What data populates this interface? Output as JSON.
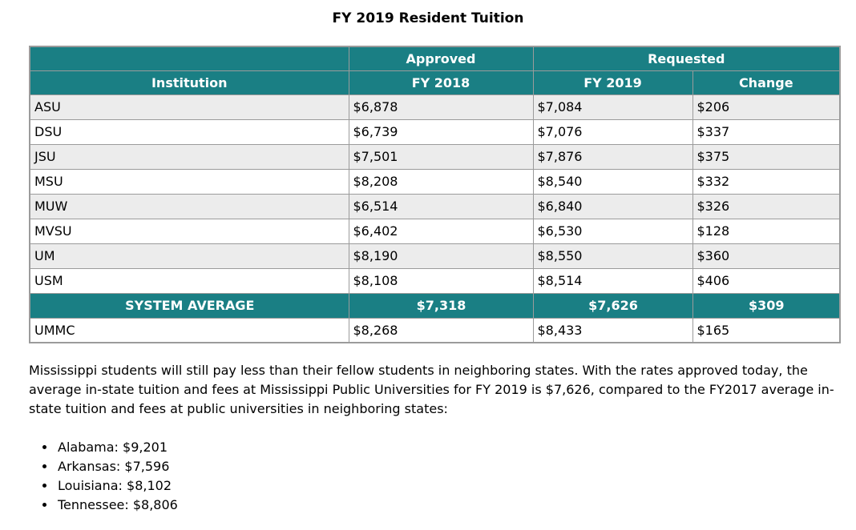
{
  "page": {
    "title": "FY 2019 Resident Tuition"
  },
  "table": {
    "header_row1": {
      "approved": "Approved",
      "requested": "Requested"
    },
    "header_row2": {
      "institution": "Institution",
      "fy2018": "FY 2018",
      "fy2019": "FY 2019",
      "change": "Change"
    },
    "rows": [
      {
        "institution": "ASU",
        "fy2018": "$6,878",
        "fy2019": "$7,084",
        "change": "$206"
      },
      {
        "institution": "DSU",
        "fy2018": "$6,739",
        "fy2019": "$7,076",
        "change": "$337"
      },
      {
        "institution": "JSU",
        "fy2018": "$7,501",
        "fy2019": "$7,876",
        "change": "$375"
      },
      {
        "institution": "MSU",
        "fy2018": "$8,208",
        "fy2019": "$8,540",
        "change": "$332"
      },
      {
        "institution": "MUW",
        "fy2018": "$6,514",
        "fy2019": "$6,840",
        "change": "$326"
      },
      {
        "institution": "MVSU",
        "fy2018": "$6,402",
        "fy2019": "$6,530",
        "change": "$128"
      },
      {
        "institution": "UM",
        "fy2018": "$8,190",
        "fy2019": "$8,550",
        "change": "$360"
      },
      {
        "institution": "USM",
        "fy2018": "$8,108",
        "fy2019": "$8,514",
        "change": "$406"
      }
    ],
    "system_average": {
      "label": "SYSTEM AVERAGE",
      "fy2018": "$7,318",
      "fy2019": "$7,626",
      "change": "$309"
    },
    "ummc": {
      "institution": "UMMC",
      "fy2018": "$8,268",
      "fy2019": "$8,433",
      "change": "$165"
    }
  },
  "body": {
    "paragraph": "Mississippi students will still pay less than their fellow students in neighboring states. With the rates approved today, the average in-state tuition and fees at Mississippi Public Universities for FY 2019 is $7,626, compared to the FY2017 average in-state tuition and fees at public universities in neighboring states:",
    "bullets": [
      "Alabama: $9,201",
      "Arkansas: $7,596",
      "Louisiana: $8,102",
      "Tennessee: $8,806"
    ]
  },
  "colors": {
    "header_teal": "#1A7F84",
    "row_alt_gray": "#ECECEC",
    "border_gray": "#9B9B9B"
  }
}
